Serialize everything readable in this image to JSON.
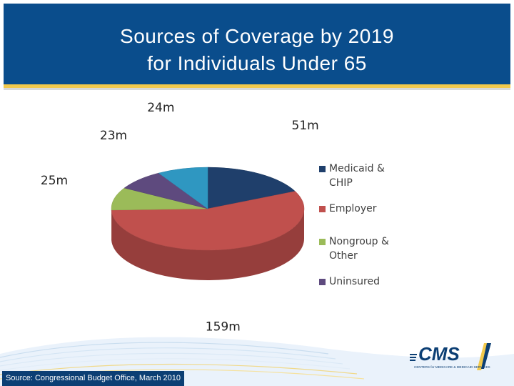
{
  "slide": {
    "title": "Sources of Coverage by 2019\nfor Individuals Under 65",
    "source": "Source:  Congressional Budget Office, March 2010",
    "logo_text": "CMS",
    "logo_subtext": "CENTERS for MEDICARE & MEDICAID SERVICES"
  },
  "colors": {
    "header_blue": "#0a4d8c",
    "accent_gold": "#f2c94c",
    "source_bar": "#0c3f74"
  },
  "chart_data": {
    "type": "pie",
    "title": "",
    "unit": "m",
    "style": "3d",
    "legend_position": "right",
    "slices": [
      {
        "name": "Medicaid & CHIP",
        "value": 51,
        "label": "51m",
        "color": "#1f3f6b"
      },
      {
        "name": "Employer",
        "value": 159,
        "label": "159m",
        "color": "#c0504d"
      },
      {
        "name": "Nongroup & Other",
        "value": 25,
        "label": "25m",
        "color": "#9bbb59"
      },
      {
        "name": "Uninsured",
        "value": 23,
        "label": "23m",
        "color": "#5e4a7e"
      },
      {
        "name": "",
        "value": 24,
        "label": "24m",
        "color": "#2f97c1"
      }
    ]
  }
}
